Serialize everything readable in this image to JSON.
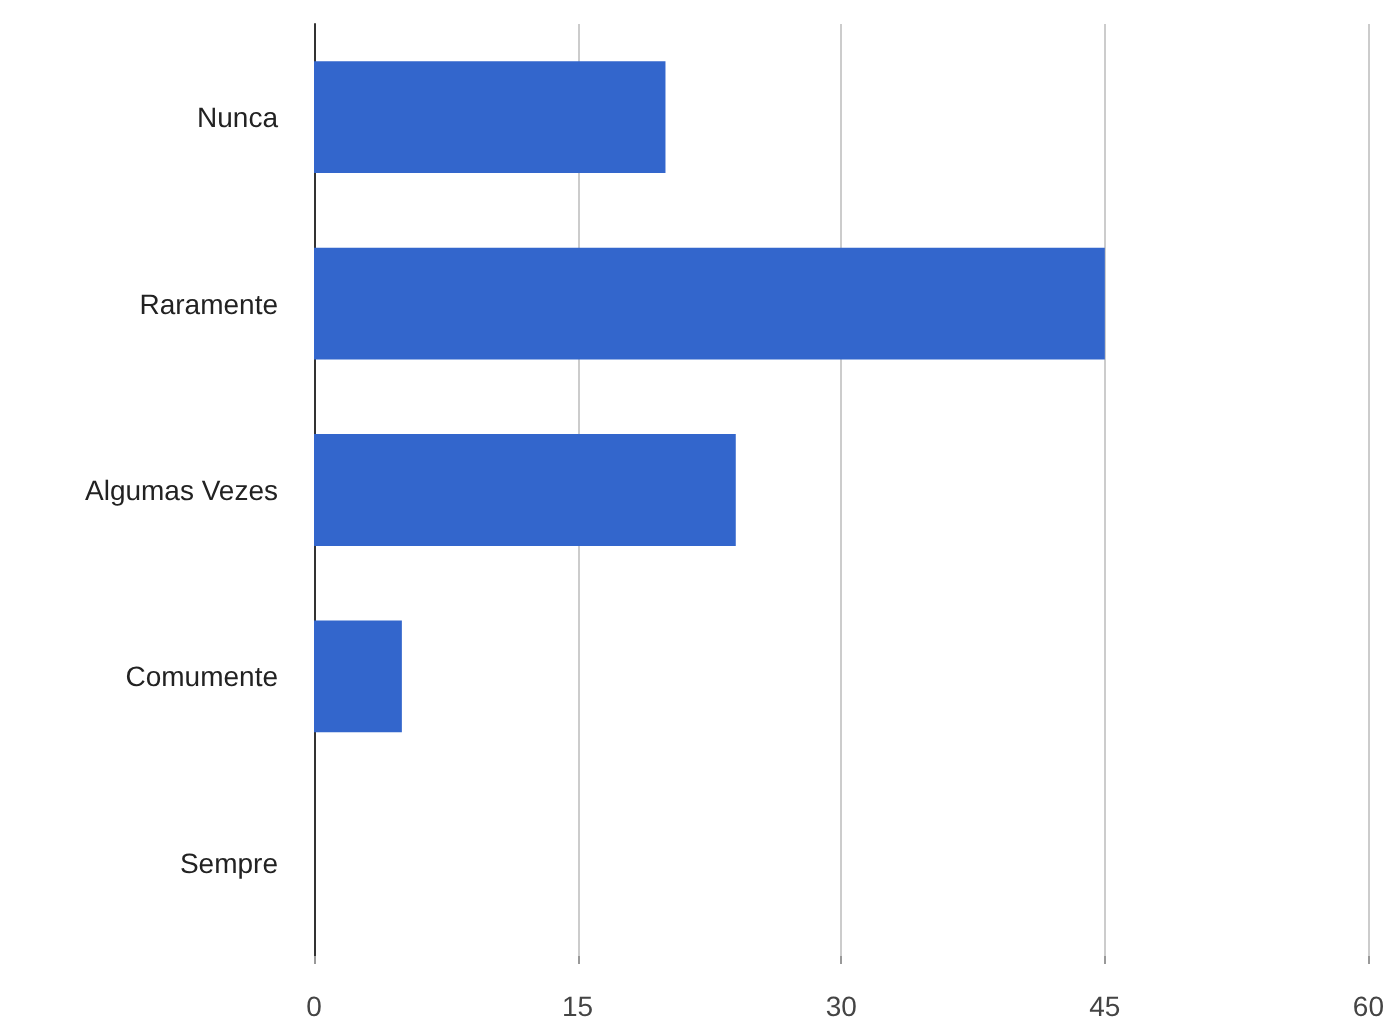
{
  "chart_data": {
    "type": "bar",
    "orientation": "horizontal",
    "categories": [
      "Nunca",
      "Raramente",
      "Algumas Vezes",
      "Comumente",
      "Sempre"
    ],
    "values": [
      20,
      45,
      24,
      5,
      0
    ],
    "color": "#3366cc",
    "xlim": [
      0,
      60
    ],
    "xticks": [
      0,
      15,
      30,
      45,
      60
    ],
    "grid": "x"
  }
}
